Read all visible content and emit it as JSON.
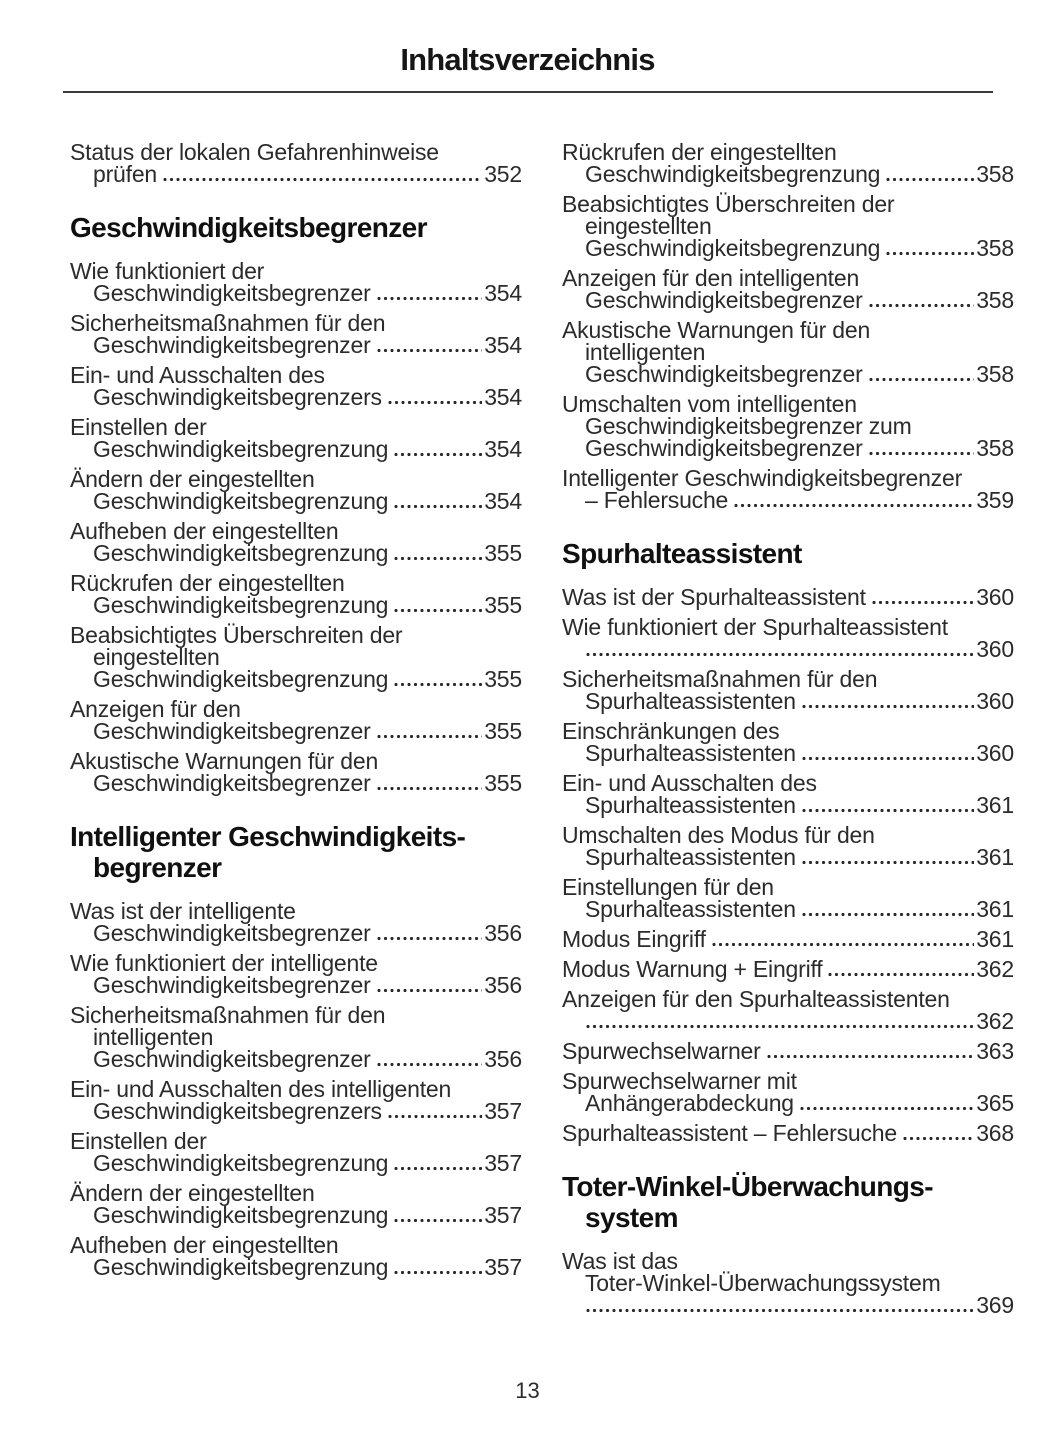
{
  "page": {
    "title": "Inhaltsverzeichnis",
    "footer_page_number": "13",
    "body_text_color": "#2b2b2b",
    "heading_text_color": "#101010",
    "rule_color": "#3a3a3a"
  },
  "toc": {
    "left": [
      {
        "type": "entry",
        "lines": [
          "Status der lokalen Gefahrenhinweise"
        ],
        "last": "prüfen",
        "page": "352"
      },
      {
        "type": "section",
        "lines": [
          "Geschwindigkeitsbegrenzer"
        ]
      },
      {
        "type": "entry",
        "lines": [
          "Wie funktioniert der"
        ],
        "last": "Geschwindigkeitsbegrenzer",
        "page": "354"
      },
      {
        "type": "entry",
        "lines": [
          "Sicherheitsmaßnahmen für den"
        ],
        "last": "Geschwindigkeitsbegrenzer",
        "page": "354"
      },
      {
        "type": "entry",
        "lines": [
          "Ein- und Ausschalten des"
        ],
        "last": "Geschwindigkeitsbegrenzers",
        "page": "354"
      },
      {
        "type": "entry",
        "lines": [
          "Einstellen der"
        ],
        "last": "Geschwindigkeitsbegrenzung",
        "page": "354"
      },
      {
        "type": "entry",
        "lines": [
          "Ändern der eingestellten"
        ],
        "last": "Geschwindigkeitsbegrenzung",
        "page": "354"
      },
      {
        "type": "entry",
        "lines": [
          "Aufheben der eingestellten"
        ],
        "last": "Geschwindigkeitsbegrenzung",
        "page": "355"
      },
      {
        "type": "entry",
        "lines": [
          "Rückrufen der eingestellten"
        ],
        "last": "Geschwindigkeitsbegrenzung",
        "page": "355"
      },
      {
        "type": "entry",
        "lines": [
          "Beabsichtigtes Überschreiten der",
          "eingestellten"
        ],
        "last": "Geschwindigkeitsbegrenzung",
        "page": "355"
      },
      {
        "type": "entry",
        "lines": [
          "Anzeigen für den"
        ],
        "last": "Geschwindigkeitsbegrenzer",
        "page": "355"
      },
      {
        "type": "entry",
        "lines": [
          "Akustische Warnungen für den"
        ],
        "last": "Geschwindigkeitsbegrenzer",
        "page": "355"
      },
      {
        "type": "section",
        "lines": [
          "Intelligenter Geschwindigkeits-",
          "begrenzer"
        ]
      },
      {
        "type": "entry",
        "lines": [
          "Was ist der intelligente"
        ],
        "last": "Geschwindigkeitsbegrenzer",
        "page": "356"
      },
      {
        "type": "entry",
        "lines": [
          "Wie funktioniert der intelligente"
        ],
        "last": "Geschwindigkeitsbegrenzer",
        "page": "356"
      },
      {
        "type": "entry",
        "lines": [
          "Sicherheitsmaßnahmen für den",
          "intelligenten"
        ],
        "last": "Geschwindigkeitsbegrenzer",
        "page": "356"
      },
      {
        "type": "entry",
        "lines": [
          "Ein- und Ausschalten des intelligenten"
        ],
        "last": "Geschwindigkeitsbegrenzers",
        "page": "357"
      },
      {
        "type": "entry",
        "lines": [
          "Einstellen der"
        ],
        "last": "Geschwindigkeitsbegrenzung",
        "page": "357"
      },
      {
        "type": "entry",
        "lines": [
          "Ändern der eingestellten"
        ],
        "last": "Geschwindigkeitsbegrenzung",
        "page": "357"
      },
      {
        "type": "entry",
        "lines": [
          "Aufheben der eingestellten"
        ],
        "last": "Geschwindigkeitsbegrenzung",
        "page": "357"
      }
    ],
    "right": [
      {
        "type": "entry",
        "lines": [
          "Rückrufen der eingestellten"
        ],
        "last": "Geschwindigkeitsbegrenzung",
        "page": "358"
      },
      {
        "type": "entry",
        "lines": [
          "Beabsichtigtes Überschreiten der",
          "eingestellten"
        ],
        "last": "Geschwindigkeitsbegrenzung",
        "page": "358"
      },
      {
        "type": "entry",
        "lines": [
          "Anzeigen für den intelligenten"
        ],
        "last": "Geschwindigkeitsbegrenzer",
        "page": "358"
      },
      {
        "type": "entry",
        "lines": [
          "Akustische Warnungen für den",
          "intelligenten"
        ],
        "last": "Geschwindigkeitsbegrenzer",
        "page": "358"
      },
      {
        "type": "entry",
        "lines": [
          "Umschalten vom intelligenten",
          "Geschwindigkeitsbegrenzer zum"
        ],
        "last": "Geschwindigkeitsbegrenzer",
        "page": "358"
      },
      {
        "type": "entry",
        "lines": [
          "Intelligenter Geschwindigkeitsbegrenzer"
        ],
        "last": "– Fehlersuche",
        "page": "359"
      },
      {
        "type": "section",
        "lines": [
          "Spurhalteassistent"
        ]
      },
      {
        "type": "entry",
        "lines": [],
        "last": "Was ist der Spurhalteassistent",
        "page": "360"
      },
      {
        "type": "entry",
        "lines": [
          "Wie funktioniert der Spurhalteassistent"
        ],
        "last": "",
        "page": "360"
      },
      {
        "type": "entry",
        "lines": [
          "Sicherheitsmaßnahmen für den"
        ],
        "last": "Spurhalteassistenten",
        "page": "360"
      },
      {
        "type": "entry",
        "lines": [
          "Einschränkungen des"
        ],
        "last": "Spurhalteassistenten",
        "page": "360"
      },
      {
        "type": "entry",
        "lines": [
          "Ein- und Ausschalten des"
        ],
        "last": "Spurhalteassistenten",
        "page": "361"
      },
      {
        "type": "entry",
        "lines": [
          "Umschalten des Modus für den"
        ],
        "last": "Spurhalteassistenten",
        "page": "361"
      },
      {
        "type": "entry",
        "lines": [
          "Einstellungen für den"
        ],
        "last": "Spurhalteassistenten",
        "page": "361"
      },
      {
        "type": "entry",
        "lines": [],
        "last": "Modus Eingriff",
        "page": "361"
      },
      {
        "type": "entry",
        "lines": [],
        "last": "Modus Warnung + Eingriff",
        "page": "362"
      },
      {
        "type": "entry",
        "lines": [
          "Anzeigen für den Spurhalteassistenten"
        ],
        "last": "",
        "page": "362"
      },
      {
        "type": "entry",
        "lines": [],
        "last": "Spurwechselwarner",
        "page": "363"
      },
      {
        "type": "entry",
        "lines": [
          "Spurwechselwarner mit"
        ],
        "last": "Anhängerabdeckung",
        "page": "365"
      },
      {
        "type": "entry",
        "lines": [],
        "last": "Spurhalteassistent – Fehlersuche",
        "page": "368"
      },
      {
        "type": "section",
        "lines": [
          "Toter-Winkel-Überwachungs-",
          "system"
        ]
      },
      {
        "type": "entry",
        "lines": [
          "Was ist das",
          "Toter-Winkel-Überwachungssystem"
        ],
        "last": "",
        "page": "369"
      }
    ]
  }
}
